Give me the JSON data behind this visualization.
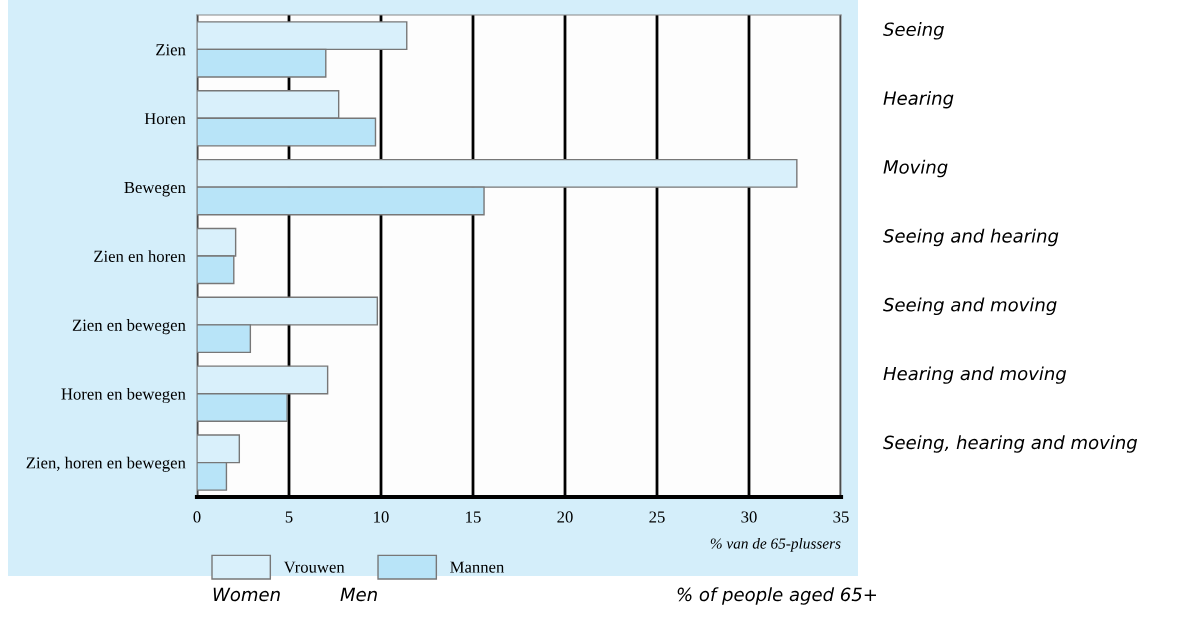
{
  "chart_data": {
    "type": "bar",
    "orientation": "horizontal",
    "categories": [
      "Zien",
      "Horen",
      "Bewegen",
      "Zien en horen",
      "Zien en bewegen",
      "Horen en bewegen",
      "Zien, horen en bewegen"
    ],
    "series": [
      {
        "name": "Vrouwen",
        "color": "#d9f0fb",
        "values": [
          11.4,
          7.7,
          32.6,
          2.1,
          9.8,
          7.1,
          2.3
        ]
      },
      {
        "name": "Mannen",
        "color": "#b8e4f8",
        "values": [
          7.0,
          9.7,
          15.6,
          2.0,
          2.9,
          4.9,
          1.6
        ]
      }
    ],
    "xlabel": "% van de 65-plussers",
    "xlim": [
      0,
      35
    ],
    "xticks": [
      0,
      5,
      10,
      15,
      20,
      25,
      30,
      35
    ],
    "grid": "x",
    "legend": "bottom left",
    "annotations": [
      "Seeing",
      "Hearing",
      "Moving",
      "Seeing and hearing",
      "Seeing and moving",
      "Hearing and moving",
      "Seeing, hearing and moving",
      "Women",
      "Men",
      "% of people aged 65+"
    ]
  }
}
